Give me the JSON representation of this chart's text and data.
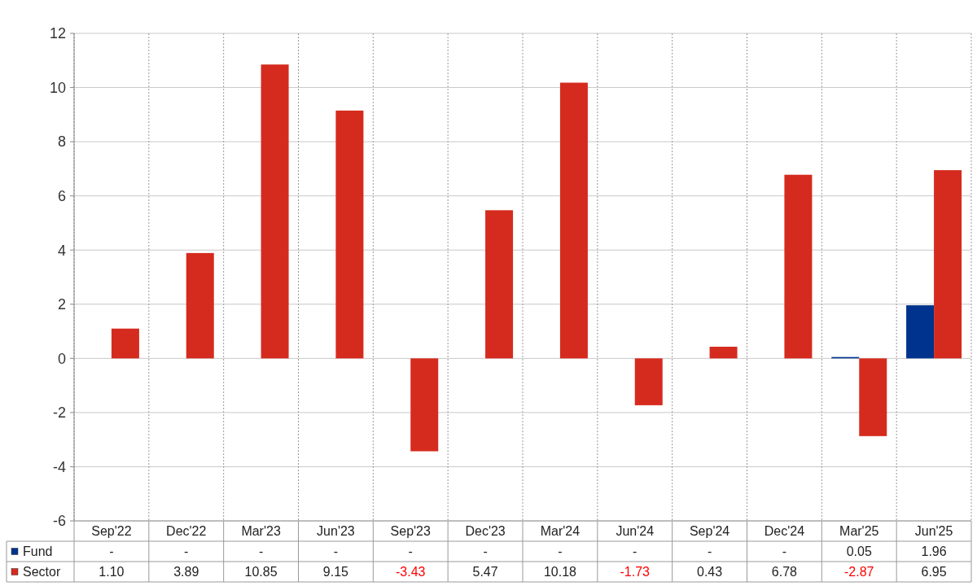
{
  "chart_data": {
    "type": "bar",
    "categories": [
      "Sep'22",
      "Dec'22",
      "Mar'23",
      "Jun'23",
      "Sep'23",
      "Dec'23",
      "Mar'24",
      "Jun'24",
      "Sep'24",
      "Dec'24",
      "Mar'25",
      "Jun'25"
    ],
    "series": [
      {
        "name": "Fund",
        "color": "#00338d",
        "values": [
          null,
          null,
          null,
          null,
          null,
          null,
          null,
          null,
          null,
          null,
          0.05,
          1.96
        ],
        "value_labels": [
          "-",
          "-",
          "-",
          "-",
          "-",
          "-",
          "-",
          "-",
          "-",
          "-",
          "0.05",
          "1.96"
        ]
      },
      {
        "name": "Sector",
        "color": "#d52b1e",
        "values": [
          1.1,
          3.89,
          10.85,
          9.15,
          -3.43,
          5.47,
          10.18,
          -1.73,
          0.43,
          6.78,
          -2.87,
          6.95
        ],
        "value_labels": [
          "1.10",
          "3.89",
          "10.85",
          "9.15",
          "-3.43",
          "5.47",
          "10.18",
          "-1.73",
          "0.43",
          "6.78",
          "-2.87",
          "6.95"
        ]
      }
    ],
    "ylim": [
      -6,
      12
    ],
    "yticks": [
      -6,
      -4,
      -2,
      0,
      2,
      4,
      6,
      8,
      10,
      12
    ],
    "grid": true,
    "legend": "bottom left"
  }
}
